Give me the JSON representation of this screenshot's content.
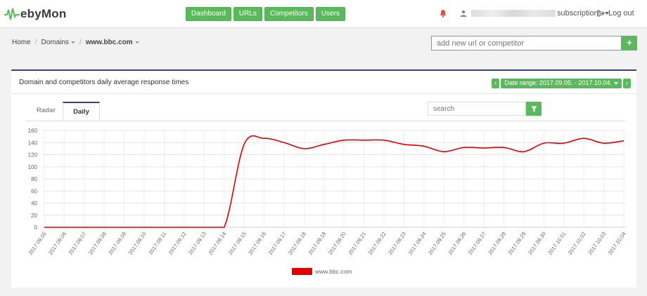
{
  "app": {
    "logo_text": "ebyMon",
    "nav": [
      "Dashboard",
      "URLs",
      "Competitors",
      "Users"
    ],
    "user_label": "subscriptions",
    "logout_label": "Log out"
  },
  "breadcrumb": {
    "home": "Home",
    "domains": "Domains",
    "current": "www.bbc.com"
  },
  "add": {
    "placeholder": "add new url or competitor",
    "button": "+"
  },
  "panel": {
    "title": "Domain and competitors daily average response times",
    "date_range": "Date range: 2017.09.05. - 2017.10.04.",
    "prev": "‹",
    "next": "›"
  },
  "tabs": [
    "Radar",
    "Daily"
  ],
  "search": {
    "placeholder": "search"
  },
  "colors": {
    "accent": "#5cb85c",
    "panel_border": "#3b3f8f",
    "series": "#e00000"
  },
  "icons": {
    "bell": "bell-icon",
    "user": "user-icon",
    "logout": "logout-icon",
    "filter": "filter-icon"
  },
  "chart_data": {
    "type": "line",
    "ylim": [
      0,
      160
    ],
    "yticks": [
      0,
      20,
      40,
      60,
      80,
      100,
      120,
      140,
      160
    ],
    "x": [
      "2017.09.05",
      "2017.09.06",
      "2017.09.07",
      "2017.09.08",
      "2017.09.09",
      "2017.09.10",
      "2017.09.11",
      "2017.09.12",
      "2017.09.13",
      "2017.09.14",
      "2017.09.15",
      "2017.09.16",
      "2017.09.17",
      "2017.09.18",
      "2017.09.19",
      "2017.09.20",
      "2017.09.21",
      "2017.09.22",
      "2017.09.23",
      "2017.09.24",
      "2017.09.25",
      "2017.09.26",
      "2017.09.27",
      "2017.09.28",
      "2017.09.29",
      "2017.09.30",
      "2017.10.01",
      "2017.10.02",
      "2017.10.03",
      "2017.10.04"
    ],
    "series": [
      {
        "name": "www.bbc.com",
        "values": [
          0,
          0,
          0,
          0,
          0,
          0,
          0,
          0,
          0,
          0,
          137,
          147,
          140,
          130,
          137,
          144,
          144,
          144,
          137,
          134,
          125,
          132,
          131,
          132,
          125,
          139,
          139,
          147,
          139,
          143
        ]
      }
    ],
    "grid": true,
    "legend": "bottom-center"
  }
}
